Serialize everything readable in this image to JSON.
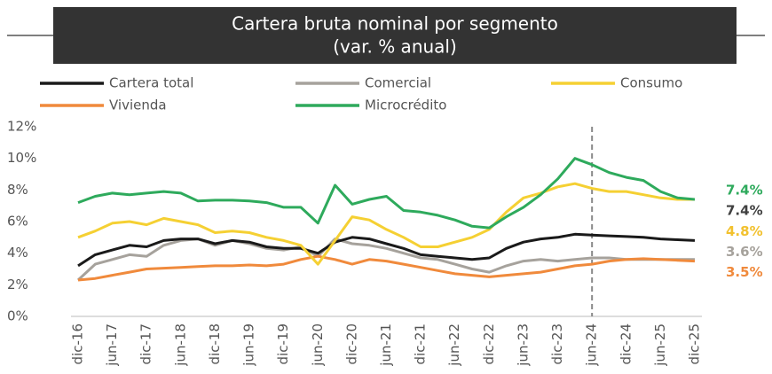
{
  "chart_data": {
    "type": "line",
    "title": "Cartera bruta nominal por segmento",
    "subtitle": "(var. % anual)",
    "categories": [
      "dic-16",
      null,
      "jun-17",
      null,
      "dic-17",
      null,
      "jun-18",
      null,
      "dic-18",
      null,
      "jun-19",
      null,
      "dic-19",
      null,
      "jun-20",
      null,
      "dic-20",
      null,
      "jun-21",
      null,
      "dic-21",
      null,
      "jun-22",
      null,
      "dic-22",
      null,
      "jun-23",
      null,
      "dic-23",
      null,
      "jun-24",
      null,
      "dic-24",
      null,
      "jun-25",
      null,
      "dic-25"
    ],
    "forecast_start": "jun-24",
    "series": [
      {
        "name": "Cartera total",
        "color": "#1a1a1a",
        "label_color": "#f2c12e",
        "values": [
          3.2,
          3.9,
          4.2,
          4.5,
          4.4,
          4.8,
          4.9,
          4.9,
          4.6,
          4.8,
          4.7,
          4.4,
          4.3,
          4.3,
          4.0,
          4.7,
          5.0,
          4.9,
          4.6,
          4.3,
          3.9,
          3.8,
          3.7,
          3.6,
          3.7,
          4.3,
          4.7,
          4.9,
          5.0,
          5.2,
          5.15,
          5.1,
          5.05,
          5.0,
          4.9,
          4.85,
          4.8
        ],
        "value_labels": [
          null,
          null,
          null,
          null,
          null,
          null,
          null,
          null,
          null,
          null,
          null,
          null,
          null,
          null,
          null,
          null,
          null,
          null,
          null,
          null,
          null,
          null,
          null,
          null,
          null,
          null,
          null,
          null,
          null,
          null,
          null,
          null,
          null,
          null,
          null,
          null,
          "4.8%"
        ]
      },
      {
        "name": "Comercial",
        "color": "#a6a29c",
        "label_color": "#a6a29c",
        "values": [
          2.3,
          3.3,
          3.6,
          3.9,
          3.8,
          4.5,
          4.8,
          4.9,
          4.5,
          4.8,
          4.6,
          4.3,
          4.2,
          4.4,
          3.8,
          4.9,
          4.6,
          4.5,
          4.3,
          4.0,
          3.7,
          3.6,
          3.3,
          3.0,
          2.8,
          3.2,
          3.5,
          3.6,
          3.5,
          3.6,
          3.7,
          3.7,
          3.6,
          3.6,
          3.6,
          3.6,
          3.6
        ],
        "value_labels": [
          null,
          null,
          null,
          null,
          null,
          null,
          null,
          null,
          null,
          null,
          null,
          null,
          null,
          null,
          null,
          null,
          null,
          null,
          null,
          null,
          null,
          null,
          null,
          null,
          null,
          null,
          null,
          null,
          null,
          null,
          null,
          null,
          null,
          null,
          null,
          null,
          "3.6%"
        ]
      },
      {
        "name": "Consumo",
        "color": "#f5d033",
        "label_color": "#404040",
        "values": [
          5.0,
          5.4,
          5.9,
          6.0,
          5.8,
          6.2,
          6.0,
          5.8,
          5.3,
          5.4,
          5.3,
          5.0,
          4.8,
          4.5,
          3.3,
          4.8,
          6.3,
          6.1,
          5.5,
          5.0,
          4.4,
          4.4,
          4.7,
          5.0,
          5.5,
          6.6,
          7.5,
          7.8,
          8.2,
          8.4,
          8.1,
          7.9,
          7.9,
          7.7,
          7.5,
          7.4,
          7.4
        ],
        "value_labels": [
          null,
          null,
          null,
          null,
          null,
          null,
          null,
          null,
          null,
          null,
          null,
          null,
          null,
          null,
          null,
          null,
          null,
          null,
          null,
          null,
          null,
          null,
          null,
          null,
          null,
          null,
          null,
          null,
          null,
          null,
          null,
          null,
          null,
          null,
          null,
          null,
          "7.4%"
        ]
      },
      {
        "name": "Vivienda",
        "color": "#f08a3c",
        "label_color": "#f08a3c",
        "values": [
          2.3,
          2.4,
          2.6,
          2.8,
          3.0,
          3.05,
          3.1,
          3.15,
          3.2,
          3.2,
          3.25,
          3.2,
          3.3,
          3.6,
          3.8,
          3.6,
          3.3,
          3.6,
          3.5,
          3.3,
          3.1,
          2.9,
          2.7,
          2.6,
          2.5,
          2.6,
          2.7,
          2.8,
          3.0,
          3.2,
          3.3,
          3.5,
          3.6,
          3.65,
          3.6,
          3.55,
          3.5
        ],
        "value_labels": [
          null,
          null,
          null,
          null,
          null,
          null,
          null,
          null,
          null,
          null,
          null,
          null,
          null,
          null,
          null,
          null,
          null,
          null,
          null,
          null,
          null,
          null,
          null,
          null,
          null,
          null,
          null,
          null,
          null,
          null,
          null,
          null,
          null,
          null,
          null,
          null,
          "3.5%"
        ]
      },
      {
        "name": "Microcrédito",
        "color": "#2eaa5c",
        "label_color": "#2eaa5c",
        "values": [
          7.2,
          7.6,
          7.8,
          7.7,
          7.8,
          7.9,
          7.8,
          7.3,
          7.35,
          7.35,
          7.3,
          7.2,
          6.9,
          6.9,
          5.9,
          8.3,
          7.1,
          7.4,
          7.6,
          6.7,
          6.6,
          6.4,
          6.1,
          5.7,
          5.6,
          6.3,
          6.9,
          7.7,
          8.7,
          10.0,
          9.6,
          9.1,
          8.8,
          8.6,
          7.9,
          7.5,
          7.4
        ],
        "value_labels": [
          null,
          null,
          null,
          null,
          null,
          null,
          null,
          null,
          null,
          null,
          null,
          null,
          null,
          null,
          null,
          null,
          null,
          null,
          null,
          null,
          null,
          null,
          null,
          null,
          null,
          null,
          null,
          null,
          null,
          null,
          null,
          null,
          null,
          null,
          null,
          null,
          "7.4%"
        ]
      }
    ],
    "ylim": [
      0,
      12
    ],
    "yticks": [
      {
        "value": 0,
        "label": "0%"
      },
      {
        "value": 2,
        "label": "2%"
      },
      {
        "value": 4,
        "label": "4%"
      },
      {
        "value": 6,
        "label": "6%"
      },
      {
        "value": 8,
        "label": "8%"
      },
      {
        "value": 10,
        "label": "10%"
      },
      {
        "value": 12,
        "label": "12%"
      }
    ],
    "grid": false
  }
}
